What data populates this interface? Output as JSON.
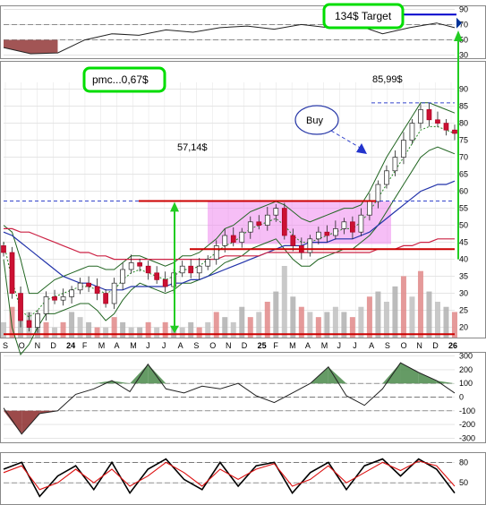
{
  "chart_data": [
    {
      "type": "line",
      "panel": "indicator-top",
      "title": "",
      "y_ticks": [
        90,
        70,
        50,
        30
      ],
      "ylim": [
        25,
        95
      ],
      "x": [
        0,
        6,
        12,
        18,
        24,
        30,
        36,
        42,
        48,
        54,
        60,
        66,
        72,
        78,
        84,
        90,
        96,
        100
      ],
      "values": [
        40,
        32,
        33,
        50,
        58,
        56,
        63,
        60,
        66,
        68,
        64,
        70,
        66,
        70,
        58,
        66,
        72,
        66
      ],
      "reference_lines": [
        70,
        50
      ],
      "annotation": "134$ Target"
    },
    {
      "type": "bar",
      "panel": "price",
      "subtype": "candlestick",
      "y_ticks": [
        90,
        85,
        80,
        75,
        70,
        65,
        60,
        55,
        50,
        45,
        40,
        35,
        30,
        25,
        20
      ],
      "ylim": [
        17,
        92
      ],
      "x_ticks": [
        "S",
        "O",
        "N",
        "D",
        "24",
        "F",
        "M",
        "A",
        "M",
        "J",
        "J",
        "A",
        "S",
        "O",
        "N",
        "D",
        "25",
        "F",
        "M",
        "A",
        "M",
        "J",
        "J",
        "A",
        "S",
        "O",
        "N",
        "D",
        "26"
      ],
      "close_path": [
        [
          0,
          42
        ],
        [
          1,
          30
        ],
        [
          2,
          22
        ],
        [
          3,
          20
        ],
        [
          4,
          24
        ],
        [
          5,
          29
        ],
        [
          6,
          28
        ],
        [
          7,
          29
        ],
        [
          8,
          31
        ],
        [
          9,
          33
        ],
        [
          10,
          32
        ],
        [
          11,
          30
        ],
        [
          12,
          27
        ],
        [
          13,
          33
        ],
        [
          14,
          37
        ],
        [
          15,
          39
        ],
        [
          16,
          38
        ],
        [
          17,
          36
        ],
        [
          18,
          34
        ],
        [
          19,
          32
        ],
        [
          20,
          36
        ],
        [
          21,
          38
        ],
        [
          22,
          36
        ],
        [
          23,
          38
        ],
        [
          24,
          40
        ],
        [
          25,
          44
        ],
        [
          26,
          47
        ],
        [
          27,
          45
        ],
        [
          28,
          48
        ],
        [
          29,
          51
        ],
        [
          30,
          50
        ],
        [
          31,
          53
        ],
        [
          32,
          55
        ],
        [
          33,
          47
        ],
        [
          34,
          44
        ],
        [
          35,
          42
        ],
        [
          36,
          46
        ],
        [
          37,
          48
        ],
        [
          38,
          47
        ],
        [
          39,
          49
        ],
        [
          40,
          51
        ],
        [
          41,
          48
        ],
        [
          42,
          53
        ],
        [
          43,
          57
        ],
        [
          44,
          62
        ],
        [
          45,
          66
        ],
        [
          46,
          70
        ],
        [
          47,
          75
        ],
        [
          48,
          80
        ],
        [
          49,
          84
        ],
        [
          50,
          81
        ],
        [
          51,
          80
        ],
        [
          52,
          78
        ],
        [
          53,
          77
        ]
      ],
      "moving_averages": [
        {
          "style": "dotted-green",
          "values": [
            45,
            34,
            25,
            23,
            25,
            28,
            29,
            30,
            31,
            32,
            32,
            31,
            30,
            31,
            34,
            36,
            37,
            36,
            35,
            34,
            35,
            37,
            37,
            38,
            40,
            42,
            44,
            45,
            47,
            49,
            50,
            51,
            52,
            50,
            47,
            45,
            45,
            46,
            47,
            48,
            49,
            49,
            51,
            54,
            58,
            62,
            66,
            70,
            74,
            78,
            79,
            79,
            78,
            77
          ]
        },
        {
          "style": "blue",
          "values": [
            48,
            47,
            45,
            43,
            41,
            39,
            37,
            35,
            34,
            33,
            33,
            32,
            31,
            31,
            31,
            32,
            32,
            32,
            32,
            32,
            33,
            33,
            34,
            34,
            35,
            36,
            37,
            38,
            39,
            40,
            41,
            42,
            43,
            44,
            44,
            44,
            45,
            45,
            45,
            46,
            46,
            46,
            47,
            48,
            50,
            52,
            54,
            56,
            58,
            60,
            61,
            62,
            62,
            63
          ]
        },
        {
          "style": "red",
          "values": [
            49,
            49,
            48,
            48,
            47,
            46,
            45,
            44,
            43,
            42,
            42,
            41,
            41,
            40,
            40,
            40,
            40,
            40,
            40,
            40,
            40,
            40,
            40,
            40,
            40,
            40,
            41,
            41,
            41,
            41,
            41,
            42,
            42,
            42,
            42,
            42,
            42,
            42,
            42,
            42,
            42,
            42,
            42,
            42,
            43,
            43,
            43,
            44,
            44,
            45,
            45,
            46,
            46,
            46
          ]
        }
      ],
      "bollinger_upper": [
        50,
        48,
        40,
        30,
        30,
        32,
        34,
        35,
        36,
        37,
        38,
        38,
        37,
        37,
        39,
        41,
        41,
        40,
        39,
        38,
        39,
        41,
        41,
        42,
        44,
        46,
        49,
        50,
        52,
        54,
        55,
        56,
        57,
        56,
        54,
        52,
        51,
        52,
        53,
        54,
        55,
        55,
        56,
        60,
        65,
        70,
        74,
        78,
        82,
        86,
        86,
        85,
        84,
        83
      ],
      "bollinger_lower": [
        40,
        20,
        12,
        15,
        20,
        24,
        24,
        25,
        26,
        27,
        27,
        25,
        22,
        24,
        28,
        31,
        33,
        32,
        31,
        30,
        31,
        33,
        33,
        34,
        35,
        37,
        39,
        40,
        41,
        43,
        44,
        45,
        46,
        43,
        40,
        38,
        38,
        40,
        41,
        42,
        43,
        43,
        45,
        47,
        50,
        54,
        58,
        62,
        66,
        70,
        72,
        73,
        72,
        71
      ],
      "volume": [
        3,
        6,
        8,
        5,
        4,
        3,
        2,
        3,
        5,
        4,
        3,
        2,
        2,
        4,
        3,
        2,
        2,
        3,
        2,
        3,
        2,
        2,
        3,
        2,
        3,
        5,
        4,
        3,
        6,
        4,
        5,
        7,
        9,
        14,
        8,
        6,
        5,
        4,
        5,
        6,
        5,
        4,
        6,
        8,
        9,
        7,
        10,
        12,
        8,
        13,
        9,
        7,
        6,
        5
      ],
      "horizontal_lines": [
        {
          "label": "57,14$",
          "value": 57.14
        },
        {
          "label": "85,99$",
          "value": 85.99
        },
        {
          "value": 43
        },
        {
          "value": 18
        }
      ],
      "annotations": [
        "57,14$",
        "85,99$",
        "Buy",
        "pmc...0,67$"
      ]
    },
    {
      "type": "area",
      "panel": "oscillator",
      "y_ticks": [
        300,
        200,
        100,
        0,
        -100,
        -200,
        -300
      ],
      "ylim": [
        -330,
        330
      ],
      "x": [
        0,
        4,
        8,
        12,
        16,
        20,
        24,
        28,
        32,
        36,
        40,
        44,
        48,
        52,
        56,
        60,
        64,
        68,
        72,
        76,
        80,
        84,
        88,
        92,
        96,
        100
      ],
      "values": [
        -80,
        -270,
        -120,
        -100,
        20,
        60,
        120,
        40,
        240,
        60,
        30,
        80,
        60,
        100,
        10,
        -40,
        30,
        100,
        220,
        10,
        -60,
        60,
        250,
        180,
        120,
        30
      ],
      "reference_lines": [
        100,
        0,
        -100
      ]
    },
    {
      "type": "line",
      "panel": "stochastic",
      "y_ticks": [
        80,
        50
      ],
      "ylim": [
        20,
        95
      ],
      "x": [
        0,
        4,
        8,
        12,
        16,
        20,
        24,
        28,
        32,
        36,
        40,
        44,
        48,
        52,
        56,
        60,
        64,
        68,
        72,
        76,
        80,
        84,
        88,
        92,
        96,
        100
      ],
      "values": [
        70,
        80,
        30,
        60,
        75,
        40,
        80,
        35,
        70,
        85,
        55,
        40,
        80,
        45,
        75,
        80,
        35,
        65,
        80,
        40,
        75,
        85,
        60,
        85,
        70,
        35
      ],
      "signal": [
        65,
        75,
        40,
        50,
        70,
        50,
        70,
        45,
        60,
        80,
        65,
        45,
        70,
        55,
        70,
        78,
        45,
        55,
        75,
        50,
        65,
        80,
        68,
        82,
        75,
        45
      ],
      "reference_lines": [
        80,
        50
      ]
    }
  ]
}
